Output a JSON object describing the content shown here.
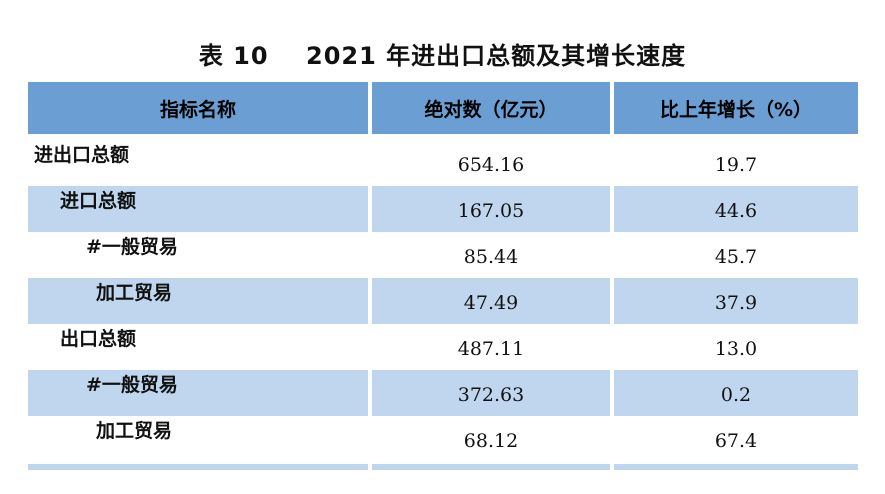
{
  "title": "表 10    2021 年进出口总额及其增长速度",
  "headers": [
    "指标名称",
    "绝对数（亿元）",
    "比上年增长（%）"
  ],
  "rows": [
    {
      "name": "进出口总额",
      "value": "654.16",
      "growth": "19.7"
    },
    {
      "name": "进口总额",
      "value": "167.05",
      "growth": "44.6"
    },
    {
      "name": "#一般贸易",
      "value": "85.44",
      "growth": "45.7"
    },
    {
      "name": "加工贸易",
      "value": "47.49",
      "growth": "37.9"
    },
    {
      "name": "出口总额",
      "value": "487.11",
      "growth": "13.0"
    },
    {
      "name": "#一般贸易",
      "value": "372.63",
      "growth": "0.2"
    },
    {
      "name": "加工贸易",
      "value": "68.12",
      "growth": "67.4"
    }
  ],
  "colors": {
    "header": "#6b9fd3",
    "stripe": "#bfd6ee"
  }
}
